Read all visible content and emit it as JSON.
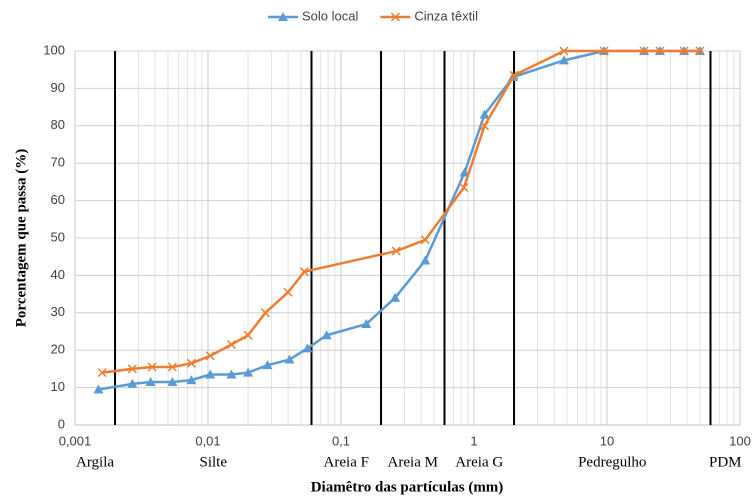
{
  "chart_data": {
    "type": "line",
    "xlabel": "Diamêtro das partículas (mm)",
    "ylabel": "Porcentagem que passa (%)",
    "xscale": "log",
    "xlim": [
      0.001,
      100
    ],
    "ylim": [
      0,
      100
    ],
    "xticks": [
      {
        "value": 0.001,
        "label": "0,001"
      },
      {
        "value": 0.01,
        "label": "0,01"
      },
      {
        "value": 0.1,
        "label": "0,1"
      },
      1,
      10,
      100
    ],
    "yticks": [
      0,
      10,
      20,
      30,
      40,
      50,
      60,
      70,
      80,
      90,
      100
    ],
    "grid": true,
    "minor_grid": true,
    "legend_position": "top",
    "boundaries": [
      0.002,
      0.06,
      0.2,
      0.6,
      2,
      60
    ],
    "size_classes": [
      "Argila",
      "Silte",
      "Areia F",
      "Areia M",
      "Areia G",
      "Pedregulho",
      "PDM"
    ],
    "series": [
      {
        "name": "Solo local",
        "color": "#5b9bd5",
        "marker": "triangle",
        "x": [
          0.0015,
          0.0027,
          0.0037,
          0.0054,
          0.0075,
          0.0104,
          0.015,
          0.02,
          0.028,
          0.041,
          0.056,
          0.078,
          0.155,
          0.255,
          0.43,
          0.85,
          1.2,
          1.96,
          4.75,
          9.5,
          19,
          25,
          38,
          50
        ],
        "values": [
          9.5,
          11,
          11.5,
          11.5,
          12,
          13.5,
          13.5,
          14,
          16,
          17.5,
          20.5,
          24,
          27,
          34,
          44,
          67.5,
          83,
          93,
          97.5,
          100,
          100,
          100,
          100,
          100
        ]
      },
      {
        "name": "Cinza têxtil",
        "color": "#ed7d31",
        "marker": "x",
        "x": [
          0.0016,
          0.0027,
          0.0038,
          0.0054,
          0.0075,
          0.0104,
          0.015,
          0.02,
          0.027,
          0.04,
          0.053,
          0.26,
          0.43,
          0.84,
          1.2,
          2,
          4.75,
          9.5,
          19,
          25,
          38,
          50
        ],
        "values": [
          14,
          15,
          15.5,
          15.5,
          16.5,
          18.5,
          21.5,
          24,
          30,
          35.5,
          41,
          46.5,
          49.5,
          63.5,
          80,
          93.5,
          100,
          100,
          100,
          100,
          100,
          100
        ]
      }
    ]
  }
}
